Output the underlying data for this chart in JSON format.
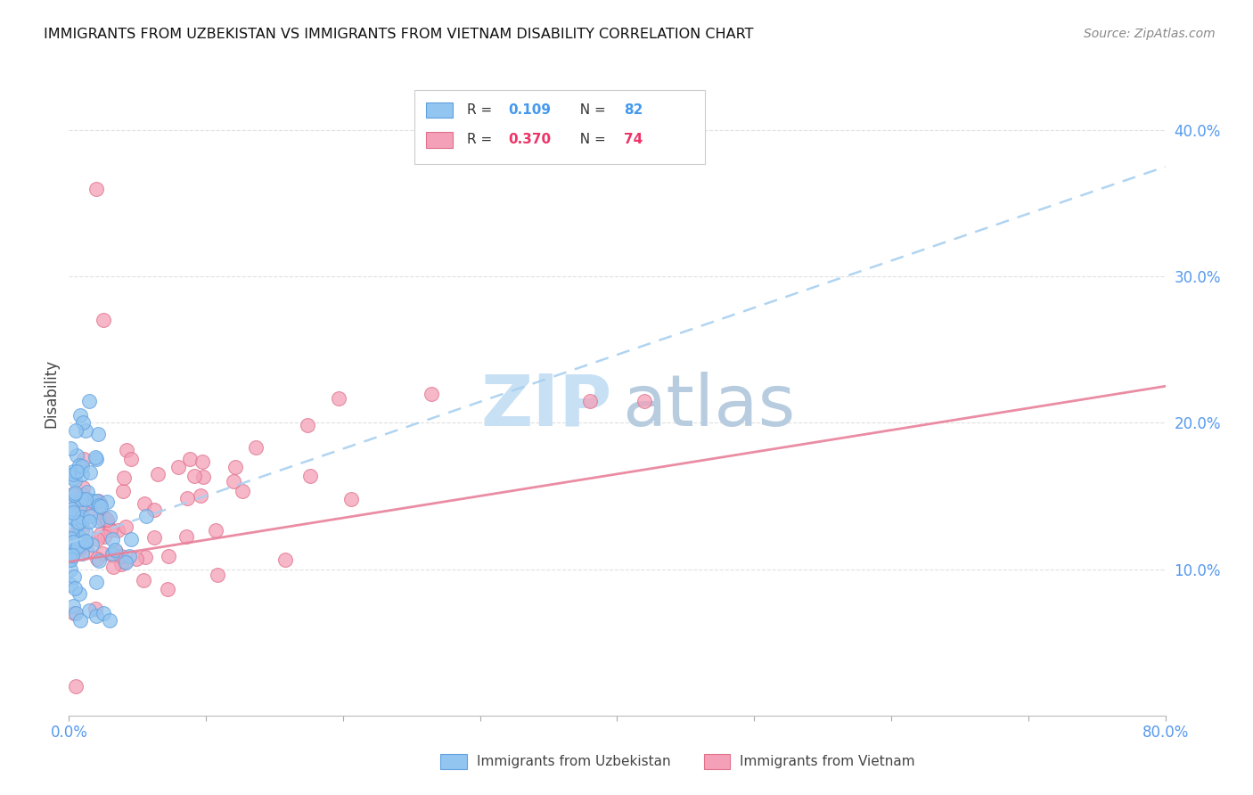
{
  "title": "IMMIGRANTS FROM UZBEKISTAN VS IMMIGRANTS FROM VIETNAM DISABILITY CORRELATION CHART",
  "source": "Source: ZipAtlas.com",
  "ylabel": "Disability",
  "color_uzbekistan": "#92C5F0",
  "color_vietnam": "#F4A0B8",
  "color_uz_edge": "#60A0E0",
  "color_vn_edge": "#E0708A",
  "trend_uz_color": "#A8D0F0",
  "trend_vn_color": "#E8809A",
  "watermark_zip_color": "#C8E0F4",
  "watermark_atlas_color": "#B8CCE0",
  "background_color": "#FFFFFF",
  "grid_color": "#DDDDDD",
  "tick_color": "#5599EE",
  "title_color": "#111111",
  "source_color": "#888888",
  "legend_text_color": "#333333",
  "xlim": [
    0.0,
    0.8
  ],
  "ylim": [
    0.0,
    0.44
  ],
  "xticks": [
    0.0,
    0.1,
    0.2,
    0.3,
    0.4,
    0.5,
    0.6,
    0.7,
    0.8
  ],
  "xticklabels": [
    "0.0%",
    "",
    "",
    "",
    "",
    "",
    "",
    "",
    "80.0%"
  ],
  "yticks": [
    0.1,
    0.2,
    0.3,
    0.4
  ],
  "yticklabels": [
    "10.0%",
    "20.0%",
    "30.0%",
    "40.0%"
  ],
  "legend_r1": "0.109",
  "legend_n1": "82",
  "legend_r2": "0.370",
  "legend_n2": "74",
  "uz_trend_x0": 0.0,
  "uz_trend_y0": 0.118,
  "uz_trend_x1": 0.8,
  "uz_trend_y1": 0.375,
  "vn_trend_x0": 0.0,
  "vn_trend_y0": 0.105,
  "vn_trend_x1": 0.8,
  "vn_trend_y1": 0.225
}
